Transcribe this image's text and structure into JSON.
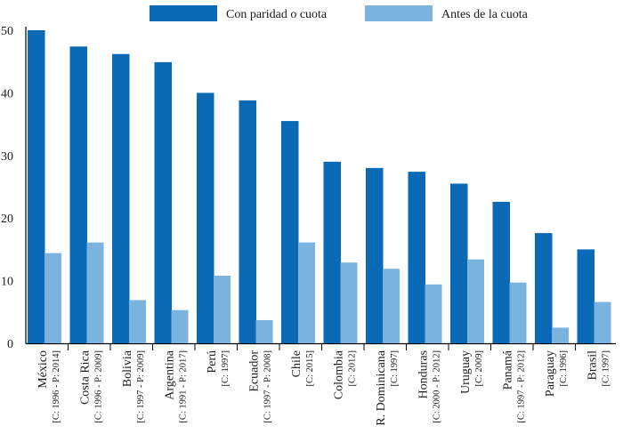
{
  "chart_data": {
    "type": "bar",
    "title": "",
    "xlabel": "",
    "ylabel": "",
    "ylim": [
      0,
      50
    ],
    "yticks": [
      0,
      10,
      20,
      30,
      40,
      50
    ],
    "grid": false,
    "legend_position": "top",
    "categories": [
      "México",
      "Costa Rica",
      "Bolivia",
      "Argentina",
      "Perú",
      "Ecuador",
      "Chile",
      "Colombia",
      "R. Dominicana",
      "Honduras",
      "Uruguay",
      "Panamá",
      "Paraguay",
      "Brasil"
    ],
    "category_notes": [
      "[C: 1996 - P: 2014]",
      "[C: 1996 - P: 2009]",
      "[C: 1997 - P: 2009]",
      "[C: 1991 - P: 2017]",
      "[C: 1997]",
      "[C: 1997 - P: 2008]",
      "[C: 2015]",
      "[C: 2012]",
      "[C: 1997]",
      "[C: 2000 - P: 2012]",
      "[C: 2009]",
      "[C: 1997 - P: 2012]",
      "[C: 1996]",
      "[C: 1997]"
    ],
    "series": [
      {
        "name": "Con paridad o cuota",
        "color": "#0a6ab5",
        "values": [
          50,
          47.4,
          46.2,
          44.9,
          40.0,
          38.8,
          35.5,
          29.0,
          28.0,
          27.4,
          25.5,
          22.6,
          17.6,
          15.0
        ]
      },
      {
        "name": "Antes de la cuota",
        "color": "#7ab3de",
        "values": [
          14.4,
          16.1,
          6.9,
          5.3,
          10.8,
          3.7,
          16.1,
          12.9,
          11.9,
          9.4,
          13.4,
          9.7,
          2.5,
          6.6
        ]
      }
    ]
  }
}
